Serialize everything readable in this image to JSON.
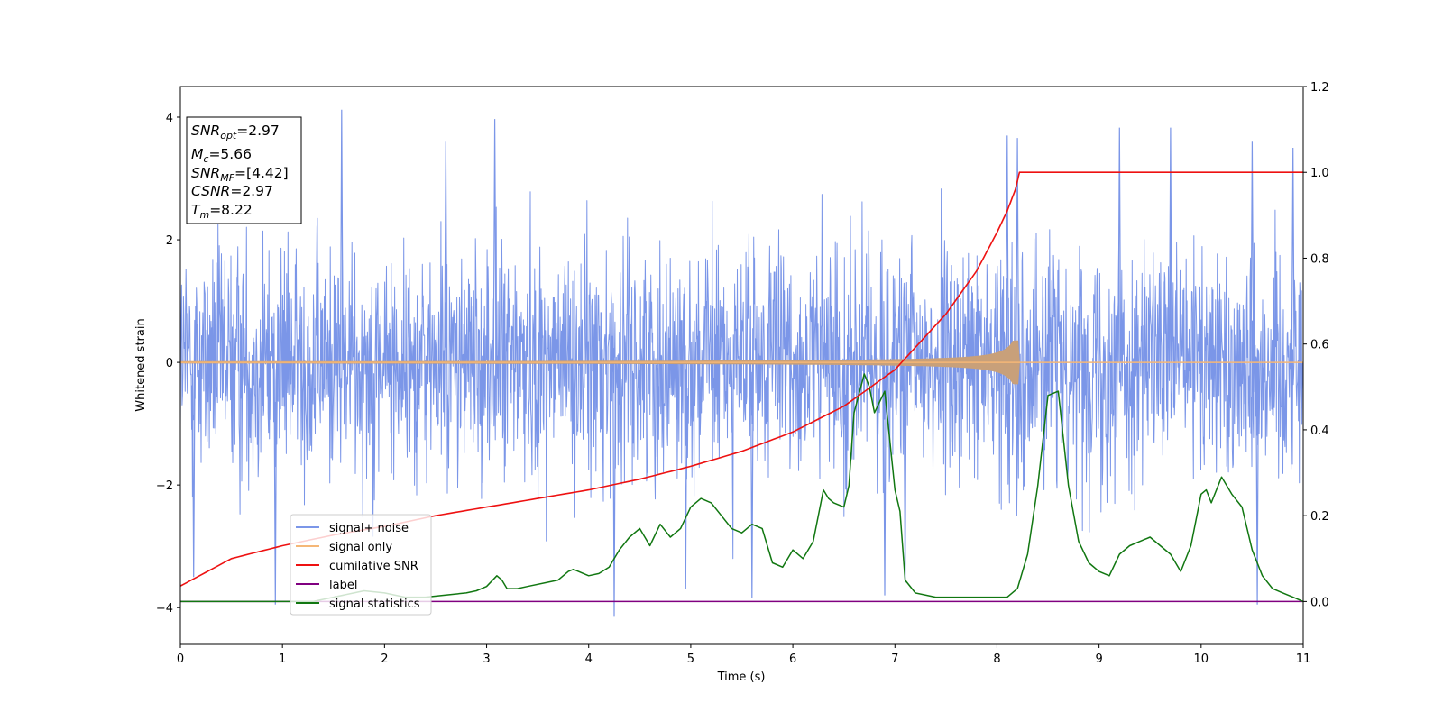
{
  "chart_data": {
    "type": "line",
    "xlabel": "Time (s)",
    "ylabel": "Whitened strain",
    "xlim": [
      0,
      11
    ],
    "ylim": [
      -4.6,
      4.5
    ],
    "y2lim": [
      -0.1,
      1.2
    ],
    "xticks": [
      "0",
      "1",
      "2",
      "3",
      "4",
      "5",
      "6",
      "7",
      "8",
      "9",
      "10",
      "11"
    ],
    "yticks": [
      "−4",
      "−2",
      "0",
      "2",
      "4"
    ],
    "y2ticks": [
      "0.0",
      "0.2",
      "0.4",
      "0.6",
      "0.8",
      "1.0",
      "1.2"
    ],
    "info_box": [
      {
        "base": "SNR",
        "sub": "opt",
        "value": "=2.97"
      },
      {
        "base": "M",
        "sub": "c",
        "value": "=5.66"
      },
      {
        "base": "SNR",
        "sub": "MF",
        "value": "=[4.42]"
      },
      {
        "base": "CSNR",
        "sub": "",
        "value": "=2.97"
      },
      {
        "base": "T",
        "sub": "m",
        "value": "=8.22"
      }
    ],
    "legend": [
      "signal+ noise",
      "signal only",
      "cumilative SNR",
      "label",
      "signal statistics"
    ],
    "legend_position": "lower-left",
    "colors": {
      "noise": "#7b96e8",
      "signal": "#f5b777",
      "signal_dark": "#c8a07a",
      "cumulative_snr": "#ee1111",
      "label": "#800080",
      "statistics": "#117711"
    },
    "series": [
      {
        "name": "signal+ noise",
        "axis": "left",
        "description_values": "dense gaussian noise, spikes up to about 4.1 and down to about -4.15",
        "max_peaks": [
          [
            1.58,
            4.12
          ],
          [
            3.08,
            3.97
          ],
          [
            2.6,
            3.6
          ],
          [
            8.1,
            3.7
          ],
          [
            10.5,
            3.6
          ],
          [
            9.2,
            3.83
          ],
          [
            9.7,
            3.83
          ],
          [
            8.2,
            3.66
          ],
          [
            10.9,
            3.5
          ]
        ],
        "min_peaks": [
          [
            4.25,
            -4.15
          ],
          [
            0.93,
            -3.95
          ],
          [
            10.55,
            -3.95
          ],
          [
            5.6,
            -3.85
          ],
          [
            6.9,
            -3.8
          ],
          [
            7.1,
            -3.6
          ],
          [
            4.95,
            -3.7
          ],
          [
            0.13,
            -3.5
          ]
        ]
      },
      {
        "name": "signal only",
        "axis": "left",
        "chirp_end": 8.22,
        "max_amplitude": 0.35
      },
      {
        "name": "cumilative SNR",
        "axis": "right",
        "x": [
          0,
          0.5,
          1,
          1.5,
          2,
          2.5,
          3,
          3.5,
          4,
          4.5,
          5,
          5.5,
          6,
          6.5,
          7,
          7.5,
          7.8,
          8.0,
          8.1,
          8.18,
          8.22,
          11
        ],
        "values": [
          0.036,
          0.1,
          0.13,
          0.155,
          0.175,
          0.2,
          0.22,
          0.24,
          0.26,
          0.285,
          0.315,
          0.35,
          0.395,
          0.455,
          0.54,
          0.67,
          0.77,
          0.86,
          0.91,
          0.96,
          1.0,
          1.0
        ]
      },
      {
        "name": "label",
        "axis": "right",
        "x": [
          0,
          11
        ],
        "values": [
          0.0,
          0.0
        ]
      },
      {
        "name": "signal statistics",
        "axis": "right",
        "x": [
          0,
          0.5,
          1,
          1.3,
          1.5,
          1.7,
          1.8,
          2.0,
          2.2,
          2.4,
          2.6,
          2.8,
          2.9,
          3.0,
          3.1,
          3.15,
          3.2,
          3.3,
          3.4,
          3.6,
          3.7,
          3.8,
          3.85,
          3.9,
          4.0,
          4.1,
          4.2,
          4.25,
          4.3,
          4.4,
          4.5,
          4.6,
          4.7,
          4.8,
          4.9,
          5.0,
          5.1,
          5.2,
          5.3,
          5.4,
          5.5,
          5.55,
          5.6,
          5.7,
          5.8,
          5.9,
          6.0,
          6.1,
          6.2,
          6.3,
          6.35,
          6.4,
          6.5,
          6.55,
          6.6,
          6.7,
          6.75,
          6.8,
          6.9,
          7.0,
          7.05,
          7.1,
          7.2,
          7.4,
          7.6,
          7.8,
          8.0,
          8.1,
          8.2,
          8.3,
          8.4,
          8.5,
          8.6,
          8.7,
          8.8,
          8.9,
          9.0,
          9.1,
          9.2,
          9.3,
          9.4,
          9.5,
          9.6,
          9.7,
          9.8,
          9.9,
          10.0,
          10.05,
          10.1,
          10.2,
          10.3,
          10.4,
          10.5,
          10.6,
          10.7,
          10.8,
          10.9,
          11.0
        ],
        "values": [
          0.0,
          0.0,
          0.0,
          0.0,
          0.01,
          0.02,
          0.025,
          0.02,
          0.01,
          0.01,
          0.015,
          0.02,
          0.025,
          0.035,
          0.06,
          0.05,
          0.03,
          0.03,
          0.035,
          0.045,
          0.05,
          0.07,
          0.075,
          0.07,
          0.06,
          0.065,
          0.08,
          0.1,
          0.12,
          0.15,
          0.17,
          0.13,
          0.18,
          0.15,
          0.17,
          0.22,
          0.24,
          0.23,
          0.2,
          0.17,
          0.16,
          0.17,
          0.18,
          0.17,
          0.09,
          0.08,
          0.12,
          0.1,
          0.14,
          0.26,
          0.24,
          0.23,
          0.22,
          0.27,
          0.44,
          0.53,
          0.5,
          0.44,
          0.49,
          0.26,
          0.21,
          0.05,
          0.02,
          0.01,
          0.01,
          0.01,
          0.01,
          0.01,
          0.03,
          0.11,
          0.27,
          0.48,
          0.49,
          0.27,
          0.14,
          0.09,
          0.07,
          0.06,
          0.11,
          0.13,
          0.14,
          0.15,
          0.13,
          0.11,
          0.07,
          0.13,
          0.25,
          0.26,
          0.23,
          0.29,
          0.25,
          0.22,
          0.12,
          0.06,
          0.03,
          0.02,
          0.01,
          0.0
        ]
      }
    ]
  }
}
